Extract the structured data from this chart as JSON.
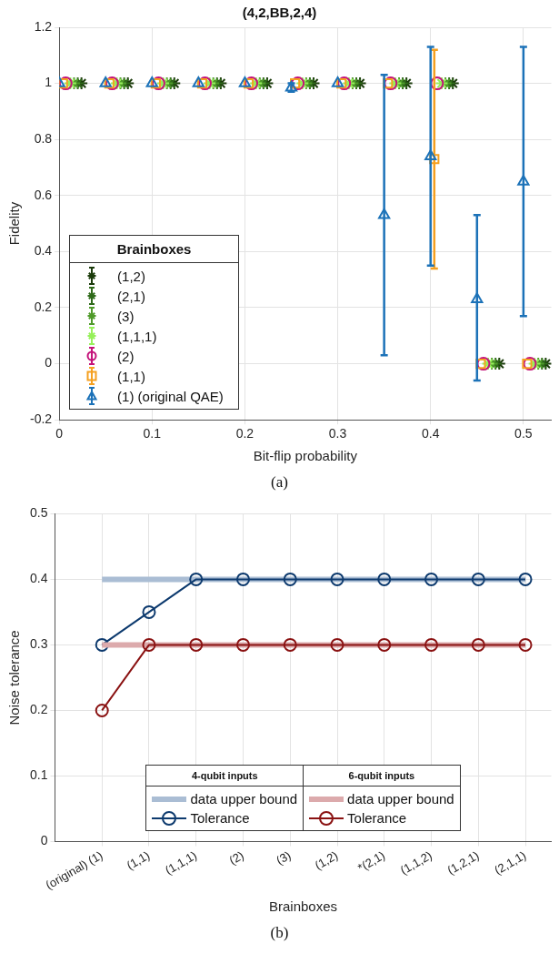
{
  "chart_data": [
    {
      "type": "scatter",
      "title": "(4,2,BB,2,4)",
      "xlabel": "Bit-flip probability",
      "ylabel": "Fidelity",
      "legend_title": "Brainboxes",
      "legend": "bottom left",
      "grid": true,
      "xlim": [
        0,
        0.53
      ],
      "xticks": [
        0,
        0.1,
        0.2,
        0.3,
        0.4,
        0.5
      ],
      "ylim": [
        -0.2,
        1.2
      ],
      "yticks": [
        -0.2,
        0,
        0.2,
        0.4,
        0.6,
        0.8,
        1,
        1.2
      ],
      "annotations": [
        "(a)"
      ],
      "series": [
        {
          "name": "(1,2)",
          "color": "#1b3b0b",
          "marker": "cross",
          "x": [
            0.024,
            0.074,
            0.124,
            0.174,
            0.224,
            0.274,
            0.324,
            0.374,
            0.424,
            0.474,
            0.524
          ],
          "values": [
            1,
            1,
            1,
            1,
            1,
            1,
            1,
            1,
            1,
            0,
            0
          ]
        },
        {
          "name": "(2,1)",
          "color": "#2f6a1a",
          "marker": "cross",
          "x": [
            0.02,
            0.07,
            0.12,
            0.17,
            0.22,
            0.27,
            0.32,
            0.37,
            0.42,
            0.47,
            0.52
          ],
          "values": [
            1,
            1,
            1,
            1,
            1,
            1,
            1,
            1,
            1,
            0,
            0
          ]
        },
        {
          "name": "(3)",
          "color": "#4f9a2a",
          "marker": "cross",
          "x": [
            0.016,
            0.066,
            0.116,
            0.166,
            0.216,
            0.266,
            0.316,
            0.366,
            0.416,
            0.466,
            0.516
          ],
          "values": [
            1,
            1,
            1,
            1,
            1,
            1,
            1,
            1,
            1,
            0,
            0
          ]
        },
        {
          "name": "(1,1,1)",
          "color": "#96f05a",
          "marker": "cross",
          "x": [
            0.012,
            0.062,
            0.112,
            0.162,
            0.212,
            0.262,
            0.312,
            0.362,
            0.412,
            0.462,
            0.512
          ],
          "values": [
            1,
            1,
            1,
            1,
            1,
            1,
            1,
            1,
            1,
            0,
            0
          ]
        },
        {
          "name": "(2)",
          "color": "#c4137a",
          "marker": "circle",
          "x": [
            0.007,
            0.057,
            0.107,
            0.157,
            0.207,
            0.257,
            0.307,
            0.357,
            0.407,
            0.457,
            0.507
          ],
          "values": [
            1,
            1,
            1,
            1,
            1,
            1,
            1,
            1,
            1,
            0,
            0
          ]
        },
        {
          "name": "(1,1)",
          "color": "#f5a020",
          "marker": "square",
          "x": [
            0.004,
            0.054,
            0.104,
            0.154,
            0.204,
            0.254,
            0.304,
            0.354,
            0.404,
            0.454,
            0.504
          ],
          "values": [
            1,
            1,
            1,
            1,
            1,
            1,
            1,
            1,
            0.73,
            0,
            0
          ],
          "errors": [
            null,
            null,
            null,
            null,
            null,
            null,
            null,
            null,
            [
              0.34,
              1.12
            ],
            null,
            null
          ]
        },
        {
          "name": "(1) (original QAE)",
          "color": "#1c72b8",
          "marker": "triangle",
          "x": [
            0,
            0.05,
            0.1,
            0.15,
            0.2,
            0.25,
            0.3,
            0.35,
            0.4,
            0.45,
            0.5
          ],
          "values": [
            1,
            1,
            1,
            1,
            1,
            0.985,
            1,
            0.53,
            0.74,
            0.23,
            0.65
          ],
          "errors": [
            null,
            null,
            null,
            null,
            null,
            [
              0.97,
              1.0
            ],
            null,
            [
              0.03,
              1.03
            ],
            [
              0.35,
              1.13
            ],
            [
              -0.06,
              0.53
            ],
            [
              0.17,
              1.13
            ]
          ]
        }
      ]
    },
    {
      "type": "line",
      "xlabel": "Brainboxes",
      "ylabel": "Noise tolerance",
      "legend_title": [
        "4-qubit inputs",
        "6-qubit inputs"
      ],
      "legend": "bottom",
      "grid": true,
      "categories": [
        "(original) (1)",
        "(1,1)",
        "(1,1,1)",
        "(2)",
        "(3)",
        "(1,2)",
        "*(2,1)",
        "(1,1,2)",
        "(1,2,1)",
        "(2,1,1)"
      ],
      "ylim": [
        0,
        0.5
      ],
      "yticks": [
        0,
        0.1,
        0.2,
        0.3,
        0.4,
        0.5
      ],
      "annotations": [
        "(b)"
      ],
      "series": [
        {
          "name": "data upper bound",
          "color": "#aabdd4",
          "marker": "none",
          "values": [
            0.4,
            0.4,
            0.4,
            0.4,
            0.4,
            0.4,
            0.4,
            0.4,
            0.4,
            0.4
          ]
        },
        {
          "name": "Tolerance",
          "color": "#0d3a6e",
          "marker": "circle",
          "values": [
            0.3,
            0.35,
            0.4,
            0.4,
            0.4,
            0.4,
            0.4,
            0.4,
            0.4,
            0.4
          ]
        },
        {
          "name": "data upper bound",
          "color": "#dcaaac",
          "marker": "none",
          "values": [
            0.3,
            0.3,
            0.3,
            0.3,
            0.3,
            0.3,
            0.3,
            0.3,
            0.3,
            0.3
          ]
        },
        {
          "name": "Tolerance",
          "color": "#8a1212",
          "marker": "circle",
          "values": [
            0.2,
            0.3,
            0.3,
            0.3,
            0.3,
            0.3,
            0.3,
            0.3,
            0.3,
            0.3
          ]
        }
      ]
    }
  ]
}
